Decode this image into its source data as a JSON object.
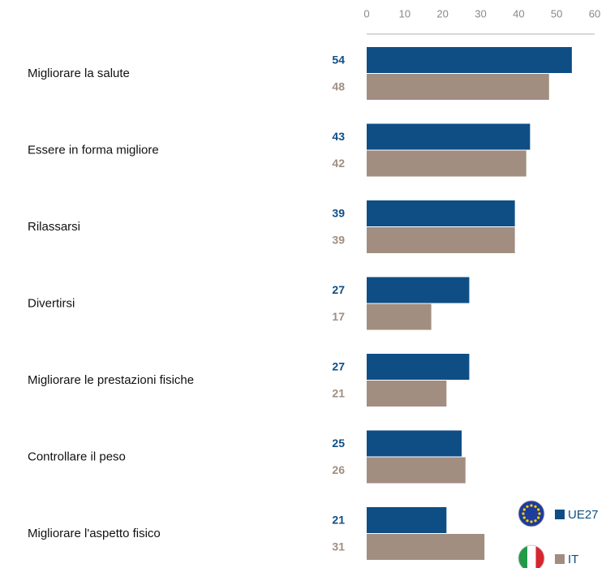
{
  "chart_data": {
    "type": "bar",
    "orientation": "horizontal",
    "categories": [
      "Migliorare la salute",
      "Essere in forma migliore",
      "Rilassarsi",
      "Divertirsi",
      "Migliorare le prestazioni fisiche",
      "Controllare il peso",
      "Migliorare l'aspetto fisico"
    ],
    "series": [
      {
        "name": "UE27",
        "color": "#0e4e85",
        "values": [
          54,
          43,
          39,
          27,
          27,
          25,
          21
        ]
      },
      {
        "name": "IT",
        "color": "#a18e80",
        "values": [
          48,
          42,
          39,
          17,
          21,
          26,
          31
        ]
      }
    ],
    "xlim": [
      0,
      60
    ],
    "xticks": [
      0,
      10,
      20,
      30,
      40,
      50,
      60
    ],
    "grid": false,
    "legend": "bottom-right"
  }
}
